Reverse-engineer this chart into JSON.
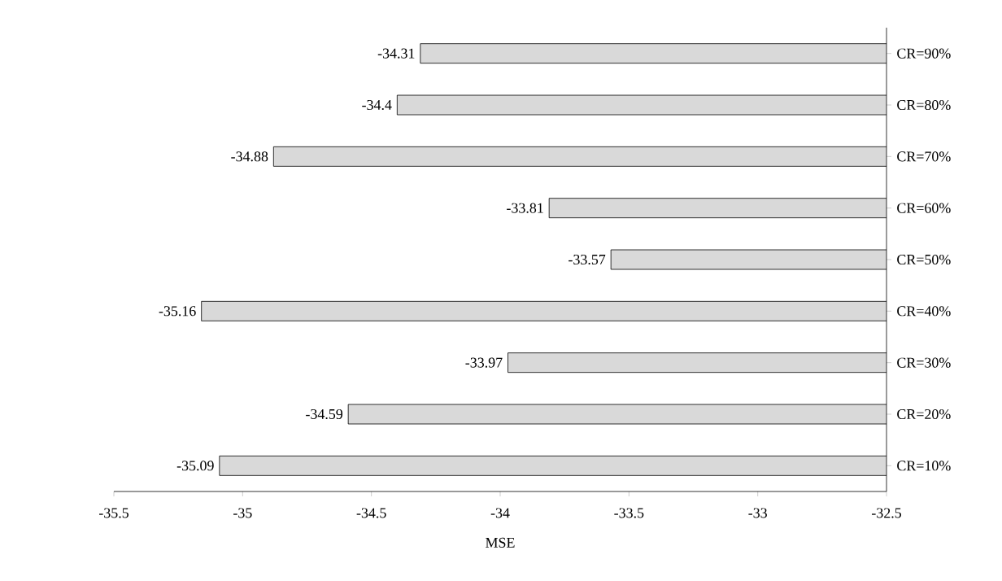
{
  "chart_data": {
    "type": "bar",
    "orientation": "horizontal",
    "xlabel": "MSE",
    "categories": [
      "CR=90%",
      "CR=80%",
      "CR=70%",
      "CR=60%",
      "CR=50%",
      "CR=40%",
      "CR=30%",
      "CR=20%",
      "CR=10%"
    ],
    "values": [
      -34.31,
      -34.4,
      -34.88,
      -33.81,
      -33.57,
      -35.16,
      -33.97,
      -34.59,
      -35.09
    ],
    "color": "#d9d9d9",
    "xlim": [
      -35.5,
      -32.5
    ],
    "xticks": [
      -35.5,
      -35,
      -34.5,
      -34,
      -33.5,
      -33,
      -32.5
    ],
    "data_labels": true,
    "grid": false
  }
}
